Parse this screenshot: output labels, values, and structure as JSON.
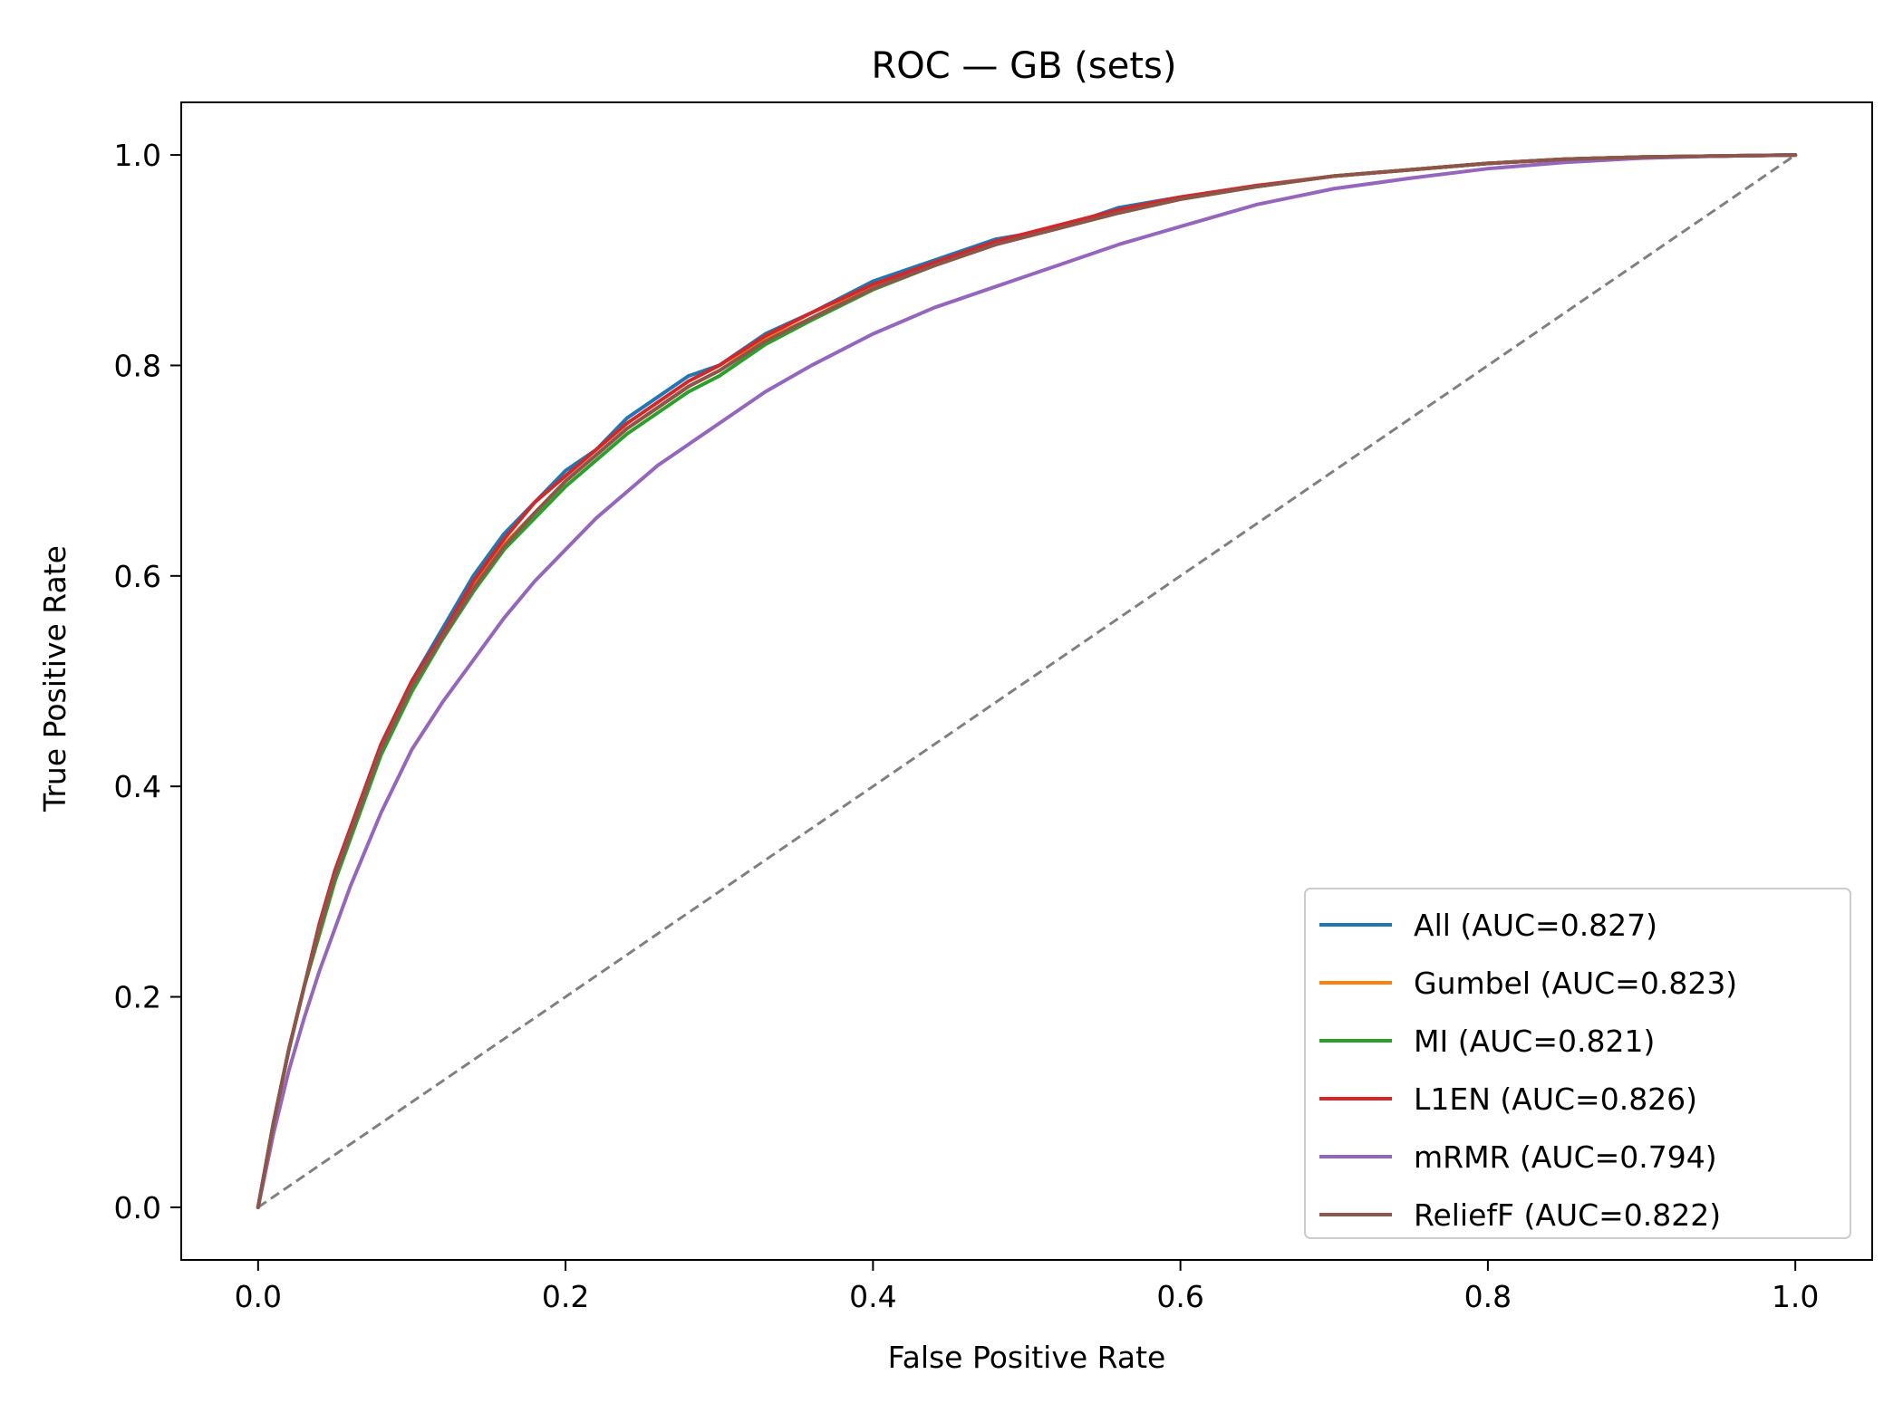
{
  "chart_data": {
    "type": "line",
    "title": "ROC — GB (sets)",
    "xlabel": "False Positive Rate",
    "ylabel": "True Positive Rate",
    "xlim": [
      -0.05,
      1.05
    ],
    "ylim": [
      -0.05,
      1.05
    ],
    "xticks": [
      "0.0",
      "0.2",
      "0.4",
      "0.6",
      "0.8",
      "1.0"
    ],
    "yticks": [
      "0.0",
      "0.2",
      "0.4",
      "0.6",
      "0.8",
      "1.0"
    ],
    "legend_position": "lower-right",
    "grid": false,
    "diagonal": {
      "x": [
        0,
        1
      ],
      "y": [
        0,
        1
      ],
      "color": "#808080",
      "style": "dashed"
    },
    "series": [
      {
        "name": "All (AUC=0.827)",
        "color": "#1f77b4",
        "x": [
          0,
          0.005,
          0.01,
          0.02,
          0.03,
          0.04,
          0.05,
          0.06,
          0.07,
          0.08,
          0.09,
          0.1,
          0.12,
          0.14,
          0.16,
          0.18,
          0.2,
          0.22,
          0.24,
          0.26,
          0.28,
          0.3,
          0.33,
          0.36,
          0.4,
          0.44,
          0.48,
          0.52,
          0.56,
          0.6,
          0.65,
          0.7,
          0.75,
          0.8,
          0.85,
          0.9,
          0.95,
          1.0
        ],
        "y": [
          0,
          0.04,
          0.08,
          0.15,
          0.21,
          0.27,
          0.32,
          0.36,
          0.4,
          0.44,
          0.47,
          0.5,
          0.55,
          0.6,
          0.64,
          0.67,
          0.7,
          0.72,
          0.75,
          0.77,
          0.79,
          0.8,
          0.83,
          0.85,
          0.88,
          0.9,
          0.92,
          0.93,
          0.95,
          0.96,
          0.97,
          0.98,
          0.986,
          0.992,
          0.996,
          0.998,
          0.999,
          1.0
        ]
      },
      {
        "name": "Gumbel (AUC=0.823)",
        "color": "#ff7f0e",
        "x": [
          0,
          0.005,
          0.01,
          0.02,
          0.03,
          0.04,
          0.05,
          0.06,
          0.07,
          0.08,
          0.09,
          0.1,
          0.12,
          0.14,
          0.16,
          0.18,
          0.2,
          0.22,
          0.24,
          0.26,
          0.28,
          0.3,
          0.33,
          0.36,
          0.4,
          0.44,
          0.48,
          0.52,
          0.56,
          0.6,
          0.65,
          0.7,
          0.75,
          0.8,
          0.85,
          0.9,
          0.95,
          1.0
        ],
        "y": [
          0,
          0.04,
          0.08,
          0.15,
          0.21,
          0.26,
          0.31,
          0.355,
          0.395,
          0.435,
          0.465,
          0.495,
          0.545,
          0.59,
          0.63,
          0.66,
          0.69,
          0.715,
          0.74,
          0.76,
          0.78,
          0.795,
          0.825,
          0.845,
          0.875,
          0.895,
          0.915,
          0.93,
          0.945,
          0.958,
          0.97,
          0.98,
          0.986,
          0.992,
          0.996,
          0.998,
          0.999,
          1.0
        ]
      },
      {
        "name": "MI (AUC=0.821)",
        "color": "#2ca02c",
        "x": [
          0,
          0.005,
          0.01,
          0.02,
          0.03,
          0.04,
          0.05,
          0.06,
          0.07,
          0.08,
          0.09,
          0.1,
          0.12,
          0.14,
          0.16,
          0.18,
          0.2,
          0.22,
          0.24,
          0.26,
          0.28,
          0.3,
          0.33,
          0.36,
          0.4,
          0.44,
          0.48,
          0.52,
          0.56,
          0.6,
          0.65,
          0.7,
          0.75,
          0.8,
          0.85,
          0.9,
          0.95,
          1.0
        ],
        "y": [
          0,
          0.04,
          0.08,
          0.15,
          0.21,
          0.26,
          0.31,
          0.35,
          0.39,
          0.43,
          0.46,
          0.49,
          0.54,
          0.585,
          0.625,
          0.655,
          0.685,
          0.71,
          0.735,
          0.755,
          0.775,
          0.79,
          0.82,
          0.843,
          0.872,
          0.895,
          0.915,
          0.93,
          0.945,
          0.958,
          0.97,
          0.98,
          0.986,
          0.992,
          0.996,
          0.998,
          0.999,
          1.0
        ]
      },
      {
        "name": "L1EN (AUC=0.826)",
        "color": "#d62728",
        "x": [
          0,
          0.005,
          0.01,
          0.02,
          0.03,
          0.04,
          0.05,
          0.06,
          0.07,
          0.08,
          0.09,
          0.1,
          0.12,
          0.14,
          0.16,
          0.18,
          0.2,
          0.22,
          0.24,
          0.26,
          0.28,
          0.3,
          0.33,
          0.36,
          0.4,
          0.44,
          0.48,
          0.52,
          0.56,
          0.6,
          0.65,
          0.7,
          0.75,
          0.8,
          0.85,
          0.9,
          0.95,
          1.0
        ],
        "y": [
          0,
          0.04,
          0.08,
          0.15,
          0.21,
          0.27,
          0.32,
          0.36,
          0.4,
          0.44,
          0.47,
          0.5,
          0.545,
          0.595,
          0.635,
          0.67,
          0.695,
          0.72,
          0.745,
          0.765,
          0.785,
          0.8,
          0.828,
          0.85,
          0.877,
          0.898,
          0.918,
          0.933,
          0.948,
          0.96,
          0.971,
          0.98,
          0.986,
          0.992,
          0.996,
          0.998,
          0.999,
          1.0
        ]
      },
      {
        "name": "mRMR (AUC=0.794)",
        "color": "#9467bd",
        "x": [
          0,
          0.005,
          0.01,
          0.02,
          0.03,
          0.04,
          0.05,
          0.06,
          0.07,
          0.08,
          0.09,
          0.1,
          0.12,
          0.14,
          0.16,
          0.18,
          0.2,
          0.22,
          0.24,
          0.26,
          0.28,
          0.3,
          0.33,
          0.36,
          0.4,
          0.44,
          0.48,
          0.52,
          0.56,
          0.6,
          0.65,
          0.7,
          0.75,
          0.8,
          0.85,
          0.9,
          0.95,
          1.0
        ],
        "y": [
          0,
          0.035,
          0.07,
          0.13,
          0.18,
          0.225,
          0.265,
          0.305,
          0.34,
          0.375,
          0.405,
          0.435,
          0.48,
          0.52,
          0.56,
          0.595,
          0.625,
          0.655,
          0.68,
          0.705,
          0.725,
          0.745,
          0.775,
          0.8,
          0.83,
          0.855,
          0.875,
          0.895,
          0.915,
          0.932,
          0.953,
          0.968,
          0.978,
          0.987,
          0.993,
          0.997,
          0.999,
          1.0
        ]
      },
      {
        "name": "ReliefF (AUC=0.822)",
        "color": "#8c564b",
        "x": [
          0,
          0.005,
          0.01,
          0.02,
          0.03,
          0.04,
          0.05,
          0.06,
          0.07,
          0.08,
          0.09,
          0.1,
          0.12,
          0.14,
          0.16,
          0.18,
          0.2,
          0.22,
          0.24,
          0.26,
          0.28,
          0.3,
          0.33,
          0.36,
          0.4,
          0.44,
          0.48,
          0.52,
          0.56,
          0.6,
          0.65,
          0.7,
          0.75,
          0.8,
          0.85,
          0.9,
          0.95,
          1.0
        ],
        "y": [
          0,
          0.04,
          0.08,
          0.15,
          0.21,
          0.265,
          0.315,
          0.355,
          0.395,
          0.435,
          0.465,
          0.495,
          0.542,
          0.588,
          0.628,
          0.66,
          0.69,
          0.715,
          0.74,
          0.76,
          0.78,
          0.795,
          0.823,
          0.845,
          0.873,
          0.895,
          0.915,
          0.93,
          0.945,
          0.958,
          0.97,
          0.98,
          0.986,
          0.992,
          0.996,
          0.998,
          0.999,
          1.0
        ]
      }
    ]
  }
}
